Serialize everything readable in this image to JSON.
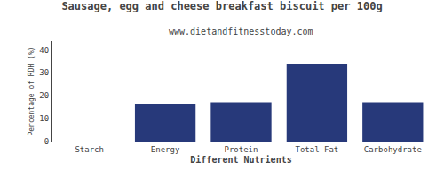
{
  "chart_data": {
    "type": "bar",
    "title": "Sausage, egg and cheese breakfast biscuit per 100g",
    "subtitle": "www.dietandfitnesstoday.com",
    "xlabel": "Different Nutrients",
    "ylabel": "Percentage of RDH (%)",
    "categories": [
      "Starch",
      "Energy",
      "Protein",
      "Total Fat",
      "Carbohydrate"
    ],
    "values": [
      0,
      16.2,
      17.2,
      34.0,
      17.2
    ],
    "color": "#27397a",
    "ylim": [
      0,
      44
    ],
    "yticks": [
      0,
      10,
      20,
      30,
      40
    ],
    "grid": true
  }
}
